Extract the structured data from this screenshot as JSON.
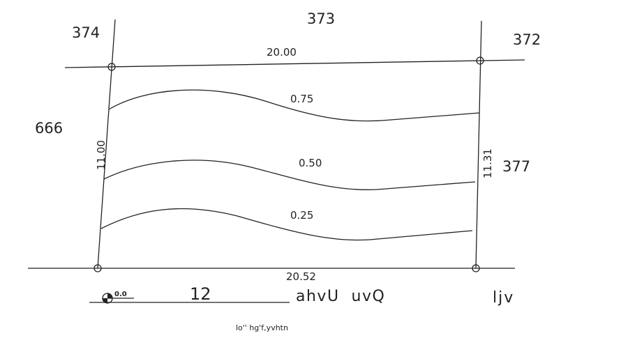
{
  "parcels": {
    "top_left": "374",
    "top": "373",
    "top_right": "372",
    "left": "666",
    "right": "377"
  },
  "dimensions": {
    "top": "20.00",
    "left": "11.00",
    "right": "11.31",
    "bottom": "20.52"
  },
  "contours": [
    "0.75",
    "0.50",
    "0.25"
  ],
  "elevation_mark": "0.0",
  "bottom_labels": {
    "number": "12",
    "street": "ahvU  uvQ",
    "right": "ljv"
  },
  "caption": "lo'' hg'f,yvhtn"
}
